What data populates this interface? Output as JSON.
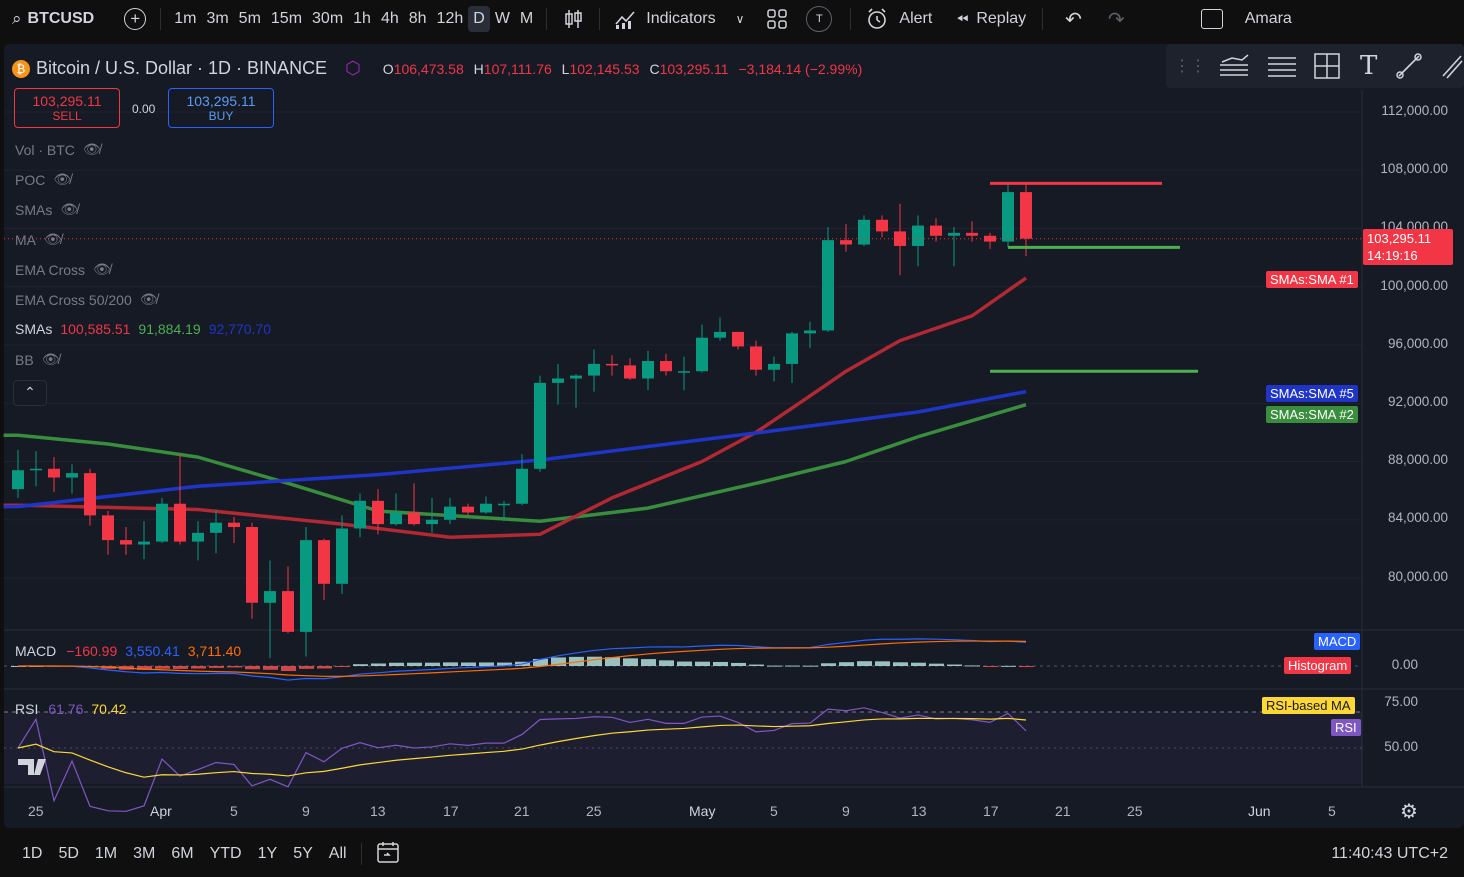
{
  "topbar": {
    "symbol": "BTCUSD",
    "intervals": [
      "1m",
      "3m",
      "5m",
      "15m",
      "30m",
      "1h",
      "4h",
      "8h",
      "12h",
      "D",
      "W",
      "M"
    ],
    "active_interval": "D",
    "indicators_label": "Indicators",
    "alert_label": "Alert",
    "replay_label": "Replay",
    "user_label": "Amara",
    "t_badge": "T"
  },
  "legend": {
    "title": "Bitcoin / U.S. Dollar · 1D · BINANCE",
    "open_key": "O",
    "open": "106,473.58",
    "high_key": "H",
    "high": "107,111.76",
    "low_key": "L",
    "low": "102,145.53",
    "close_key": "C",
    "close": "103,295.11",
    "change": "−3,184.14 (−2.99%)",
    "sell_price": "103,295.11",
    "sell_label": "SELL",
    "spread": "0.00",
    "buy_price": "103,295.11",
    "buy_label": "BUY",
    "studies": [
      "Vol · BTC",
      "POC",
      "SMAs",
      "MA",
      "EMA Cross",
      "EMA Cross 50/200"
    ],
    "smas_label": "SMAs",
    "sma1_value": "100,585.51",
    "sma2_value": "91,884.19",
    "sma5_value": "92,770.70",
    "bb_label": "BB"
  },
  "price_axis": [
    "112,000.00",
    "108,000.00",
    "104,000.00",
    "100,000.00",
    "96,000.00",
    "92,000.00",
    "88,000.00",
    "84,000.00",
    "80,000.00"
  ],
  "price_tag": {
    "price": "103,295.11",
    "countdown": "14:19:16"
  },
  "sma_tags": {
    "sma1": "SMAs:SMA #1",
    "sma5": "SMAs:SMA #5",
    "sma2": "SMAs:SMA #2"
  },
  "macd": {
    "label": "MACD",
    "v1": "−160.99",
    "v2": "3,550.41",
    "v3": "3,711.40",
    "tag_macd": "MACD",
    "tag_hist": "Histogram",
    "axis_zero": "0.00"
  },
  "rsi": {
    "label": "RSI",
    "value": "61.76",
    "ma_value": "70.42",
    "tag_ma": "RSI-based MA",
    "tag_rsi": "RSI",
    "axis_75": "75.00",
    "axis_50": "50.00"
  },
  "date_axis": [
    "25",
    "Apr",
    "5",
    "9",
    "13",
    "17",
    "21",
    "25",
    "May",
    "5",
    "9",
    "13",
    "17",
    "21",
    "25",
    "Jun",
    "5"
  ],
  "bottombar": {
    "ranges": [
      "1D",
      "5D",
      "1M",
      "3M",
      "6M",
      "YTD",
      "1Y",
      "5Y",
      "All"
    ],
    "clock": "11:40:43 UTC+2"
  },
  "colors": {
    "up": "#089981",
    "down": "#f23645",
    "sma1": "#b22833",
    "sma2": "#388e3c",
    "sma5": "#1e35c8",
    "macd": "#2962ff",
    "signal": "#ff6d00",
    "rsi": "#7e57c2",
    "rsi_ma": "#fdd835"
  },
  "chart_data": {
    "type": "candlestick",
    "candles": [
      {
        "date": "2025-03-24",
        "o": 86100,
        "h": 88800,
        "l": 85500,
        "c": 87400
      },
      {
        "date": "2025-03-25",
        "o": 87400,
        "h": 88700,
        "l": 86300,
        "c": 87500
      },
      {
        "date": "2025-03-26",
        "o": 87500,
        "h": 88300,
        "l": 85900,
        "c": 86900
      },
      {
        "date": "2025-03-27",
        "o": 86900,
        "h": 87800,
        "l": 85800,
        "c": 87200
      },
      {
        "date": "2025-03-28",
        "o": 87200,
        "h": 87500,
        "l": 83600,
        "c": 84300
      },
      {
        "date": "2025-03-29",
        "o": 84300,
        "h": 84600,
        "l": 81600,
        "c": 82600
      },
      {
        "date": "2025-03-30",
        "o": 82600,
        "h": 83500,
        "l": 81600,
        "c": 82300
      },
      {
        "date": "2025-03-31",
        "o": 82300,
        "h": 83900,
        "l": 81300,
        "c": 82500
      },
      {
        "date": "2025-04-01",
        "o": 82500,
        "h": 85500,
        "l": 82400,
        "c": 85100
      },
      {
        "date": "2025-04-02",
        "o": 85100,
        "h": 88500,
        "l": 82300,
        "c": 82500
      },
      {
        "date": "2025-04-03",
        "o": 82500,
        "h": 83900,
        "l": 81200,
        "c": 83100
      },
      {
        "date": "2025-04-04",
        "o": 83100,
        "h": 84700,
        "l": 81700,
        "c": 83800
      },
      {
        "date": "2025-04-05",
        "o": 83800,
        "h": 84200,
        "l": 82400,
        "c": 83500
      },
      {
        "date": "2025-04-06",
        "o": 83500,
        "h": 83800,
        "l": 77200,
        "c": 78300
      },
      {
        "date": "2025-04-07",
        "o": 78300,
        "h": 81200,
        "l": 74500,
        "c": 79100
      },
      {
        "date": "2025-04-08",
        "o": 79100,
        "h": 80800,
        "l": 76200,
        "c": 76300
      },
      {
        "date": "2025-04-09",
        "o": 76300,
        "h": 83500,
        "l": 74600,
        "c": 82600
      },
      {
        "date": "2025-04-10",
        "o": 82600,
        "h": 82700,
        "l": 78500,
        "c": 79600
      },
      {
        "date": "2025-04-11",
        "o": 79600,
        "h": 84300,
        "l": 78900,
        "c": 83400
      },
      {
        "date": "2025-04-12",
        "o": 83400,
        "h": 85800,
        "l": 82800,
        "c": 85300
      },
      {
        "date": "2025-04-13",
        "o": 85300,
        "h": 86100,
        "l": 83000,
        "c": 83700
      },
      {
        "date": "2025-04-14",
        "o": 83700,
        "h": 85800,
        "l": 83600,
        "c": 84500
      },
      {
        "date": "2025-04-15",
        "o": 84500,
        "h": 86500,
        "l": 83600,
        "c": 83700
      },
      {
        "date": "2025-04-16",
        "o": 83700,
        "h": 85500,
        "l": 83100,
        "c": 84000
      },
      {
        "date": "2025-04-17",
        "o": 84000,
        "h": 85500,
        "l": 83700,
        "c": 84900
      },
      {
        "date": "2025-04-18",
        "o": 84900,
        "h": 85100,
        "l": 84300,
        "c": 84500
      },
      {
        "date": "2025-04-19",
        "o": 84500,
        "h": 85600,
        "l": 84400,
        "c": 85100
      },
      {
        "date": "2025-04-20",
        "o": 85100,
        "h": 85300,
        "l": 83900,
        "c": 85100
      },
      {
        "date": "2025-04-21",
        "o": 85100,
        "h": 88500,
        "l": 85000,
        "c": 87500
      },
      {
        "date": "2025-04-22",
        "o": 87500,
        "h": 93900,
        "l": 87300,
        "c": 93400
      },
      {
        "date": "2025-04-23",
        "o": 93400,
        "h": 94700,
        "l": 91900,
        "c": 93700
      },
      {
        "date": "2025-04-24",
        "o": 93700,
        "h": 94000,
        "l": 91700,
        "c": 93900
      },
      {
        "date": "2025-04-25",
        "o": 93900,
        "h": 95700,
        "l": 92800,
        "c": 94700
      },
      {
        "date": "2025-04-26",
        "o": 94700,
        "h": 95300,
        "l": 93900,
        "c": 94600
      },
      {
        "date": "2025-04-27",
        "o": 94600,
        "h": 95100,
        "l": 93600,
        "c": 93700
      },
      {
        "date": "2025-04-28",
        "o": 93700,
        "h": 95600,
        "l": 92900,
        "c": 94900
      },
      {
        "date": "2025-04-29",
        "o": 94900,
        "h": 95400,
        "l": 93900,
        "c": 94200
      },
      {
        "date": "2025-04-30",
        "o": 94200,
        "h": 95200,
        "l": 92900,
        "c": 94200
      },
      {
        "date": "2025-05-01",
        "o": 94200,
        "h": 97400,
        "l": 94100,
        "c": 96500
      },
      {
        "date": "2025-05-02",
        "o": 96500,
        "h": 97900,
        "l": 96300,
        "c": 96900
      },
      {
        "date": "2025-05-03",
        "o": 96900,
        "h": 96900,
        "l": 95700,
        "c": 95900
      },
      {
        "date": "2025-05-04",
        "o": 95900,
        "h": 96300,
        "l": 93900,
        "c": 94300
      },
      {
        "date": "2025-05-05",
        "o": 94300,
        "h": 95200,
        "l": 93500,
        "c": 94700
      },
      {
        "date": "2025-05-06",
        "o": 94700,
        "h": 96900,
        "l": 93400,
        "c": 96800
      },
      {
        "date": "2025-05-07",
        "o": 96800,
        "h": 97600,
        "l": 95800,
        "c": 97000
      },
      {
        "date": "2025-05-08",
        "o": 97000,
        "h": 104100,
        "l": 96900,
        "c": 103200
      },
      {
        "date": "2025-05-09",
        "o": 103200,
        "h": 104300,
        "l": 102400,
        "c": 102900
      },
      {
        "date": "2025-05-10",
        "o": 102900,
        "h": 104900,
        "l": 102800,
        "c": 104600
      },
      {
        "date": "2025-05-11",
        "o": 104600,
        "h": 104900,
        "l": 103400,
        "c": 103800
      },
      {
        "date": "2025-05-12",
        "o": 103800,
        "h": 105700,
        "l": 100800,
        "c": 102800
      },
      {
        "date": "2025-05-13",
        "o": 102800,
        "h": 104900,
        "l": 101400,
        "c": 104200
      },
      {
        "date": "2025-05-14",
        "o": 104200,
        "h": 104700,
        "l": 103100,
        "c": 103500
      },
      {
        "date": "2025-05-15",
        "o": 103500,
        "h": 104100,
        "l": 101400,
        "c": 103700
      },
      {
        "date": "2025-05-16",
        "o": 103700,
        "h": 104500,
        "l": 103100,
        "c": 103500
      },
      {
        "date": "2025-05-17",
        "o": 103500,
        "h": 103700,
        "l": 102600,
        "c": 103100
      },
      {
        "date": "2025-05-18",
        "o": 103100,
        "h": 107100,
        "l": 102700,
        "c": 106500
      },
      {
        "date": "2025-05-19",
        "o": 106500,
        "h": 107100,
        "l": 102100,
        "c": 103300
      }
    ],
    "drawn_levels": [
      {
        "price": 107100,
        "color": "red",
        "from": "2025-05-17",
        "to": "2025-05-26"
      },
      {
        "price": 102700,
        "color": "green",
        "from": "2025-05-18",
        "to": "2025-05-27"
      },
      {
        "price": 94200,
        "color": "green",
        "from": "2025-05-17",
        "to": "2025-05-28"
      }
    ],
    "sma1": [
      [
        0,
        85000
      ],
      [
        10,
        84700
      ],
      [
        18,
        83700
      ],
      [
        24,
        82800
      ],
      [
        29,
        83000
      ],
      [
        33,
        85500
      ],
      [
        38,
        88000
      ],
      [
        41,
        90000
      ],
      [
        44,
        92500
      ],
      [
        46,
        94200
      ],
      [
        49,
        96300
      ],
      [
        53,
        98000
      ],
      [
        56,
        100600
      ]
    ],
    "sma2": [
      [
        0,
        89800
      ],
      [
        5,
        89200
      ],
      [
        10,
        88300
      ],
      [
        15,
        86500
      ],
      [
        20,
        84600
      ],
      [
        29,
        83900
      ],
      [
        35,
        84800
      ],
      [
        41,
        86500
      ],
      [
        46,
        88000
      ],
      [
        50,
        89700
      ],
      [
        53,
        90800
      ],
      [
        56,
        91900
      ]
    ],
    "sma5": [
      [
        0,
        84900
      ],
      [
        10,
        86300
      ],
      [
        20,
        87100
      ],
      [
        29,
        88100
      ],
      [
        40,
        89800
      ],
      [
        50,
        91400
      ],
      [
        56,
        92800
      ]
    ],
    "ylim": [
      77000,
      113000
    ]
  }
}
